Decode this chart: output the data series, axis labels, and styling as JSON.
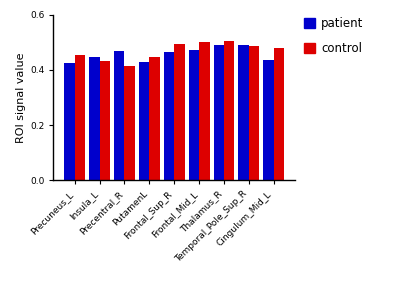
{
  "categories": [
    "Precuneus_L",
    "Insula_L",
    "Precentral_R",
    "PutamenL",
    "Frontal_Sup_R",
    "Frontal_Mid_L",
    "Thalamus_R",
    "Temporal_Pole_Sup_R",
    "Cingulum_Mid_L"
  ],
  "patient_values": [
    0.423,
    0.445,
    0.468,
    0.428,
    0.463,
    0.473,
    0.49,
    0.49,
    0.435
  ],
  "control_values": [
    0.455,
    0.432,
    0.415,
    0.447,
    0.495,
    0.5,
    0.503,
    0.488,
    0.478
  ],
  "patient_color": "#0000cc",
  "control_color": "#dd0000",
  "ylabel": "ROI signal value",
  "ylim": [
    0.0,
    0.6
  ],
  "yticks": [
    0.0,
    0.2,
    0.4,
    0.6
  ],
  "bar_width": 0.42,
  "legend_labels": [
    "patient",
    "control"
  ],
  "background_color": "#ffffff",
  "spine_color": "#000000",
  "tick_fontsize": 6.5,
  "ylabel_fontsize": 8,
  "legend_fontsize": 8.5
}
